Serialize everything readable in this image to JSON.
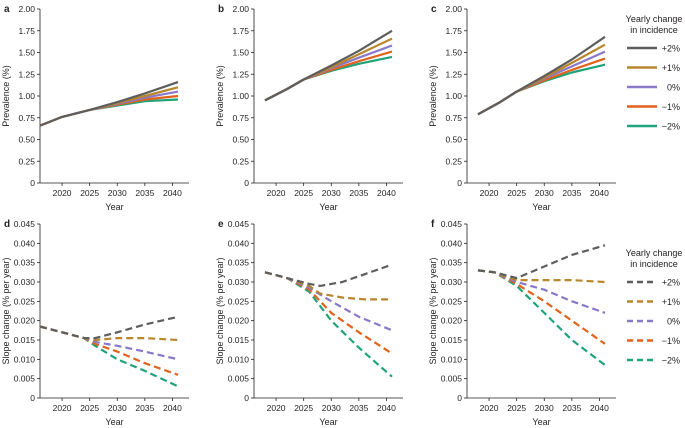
{
  "series_styles": [
    {
      "label": "+2%",
      "color": "#5e5e5e"
    },
    {
      "label": "+1%",
      "color": "#b8862b"
    },
    {
      "label": "0%",
      "color": "#8a78c9"
    },
    {
      "label": "−1%",
      "color": "#e0621b"
    },
    {
      "label": "−2%",
      "color": "#1fa37a"
    }
  ],
  "legend_title": [
    "Yearly change",
    "in incidence"
  ],
  "chart_data": [
    {
      "panel_label": "a",
      "type": "line",
      "line_style": "solid",
      "xlabel": "Year",
      "ylabel": "Prevalence (%)",
      "xlim": [
        2016,
        2043
      ],
      "ylim": [
        0,
        2.0
      ],
      "xticks": [
        2020,
        2025,
        2030,
        2035,
        2040
      ],
      "yticks": [
        "0",
        "0.25",
        "0.50",
        "0.75",
        "1.00",
        "1.25",
        "1.50",
        "1.75",
        "2.00"
      ],
      "ytick_values": [
        0,
        0.25,
        0.5,
        0.75,
        1.0,
        1.25,
        1.5,
        1.75,
        2.0
      ],
      "series": [
        {
          "name": "+2%",
          "points": [
            [
              2016,
              0.66
            ],
            [
              2020,
              0.76
            ],
            [
              2025,
              0.84
            ],
            [
              2030,
              0.93
            ],
            [
              2035,
              1.03
            ],
            [
              2041,
              1.16
            ]
          ]
        },
        {
          "name": "+1%",
          "points": [
            [
              2016,
              0.66
            ],
            [
              2020,
              0.76
            ],
            [
              2025,
              0.84
            ],
            [
              2030,
              0.92
            ],
            [
              2035,
              1.0
            ],
            [
              2041,
              1.1
            ]
          ]
        },
        {
          "name": "0%",
          "points": [
            [
              2016,
              0.66
            ],
            [
              2020,
              0.76
            ],
            [
              2025,
              0.84
            ],
            [
              2030,
              0.91
            ],
            [
              2035,
              0.98
            ],
            [
              2041,
              1.05
            ]
          ]
        },
        {
          "name": "−1%",
          "points": [
            [
              2016,
              0.66
            ],
            [
              2020,
              0.76
            ],
            [
              2025,
              0.84
            ],
            [
              2030,
              0.9
            ],
            [
              2035,
              0.96
            ],
            [
              2041,
              1.0
            ]
          ]
        },
        {
          "name": "−2%",
          "points": [
            [
              2016,
              0.66
            ],
            [
              2020,
              0.76
            ],
            [
              2025,
              0.84
            ],
            [
              2030,
              0.89
            ],
            [
              2035,
              0.94
            ],
            [
              2041,
              0.96
            ]
          ]
        }
      ]
    },
    {
      "panel_label": "b",
      "type": "line",
      "line_style": "solid",
      "xlabel": "Year",
      "ylabel": "Prevalence (%)",
      "xlim": [
        2016,
        2043
      ],
      "ylim": [
        0,
        2.0
      ],
      "xticks": [
        2020,
        2025,
        2030,
        2035,
        2040
      ],
      "yticks": [
        "0",
        "0.25",
        "0.50",
        "0.75",
        "1.00",
        "1.25",
        "1.50",
        "1.75",
        "2.00"
      ],
      "ytick_values": [
        0,
        0.25,
        0.5,
        0.75,
        1.0,
        1.25,
        1.5,
        1.75,
        2.0
      ],
      "series": [
        {
          "name": "+2%",
          "points": [
            [
              2018,
              0.95
            ],
            [
              2022,
              1.08
            ],
            [
              2025,
              1.19
            ],
            [
              2030,
              1.35
            ],
            [
              2035,
              1.52
            ],
            [
              2041,
              1.75
            ]
          ]
        },
        {
          "name": "+1%",
          "points": [
            [
              2018,
              0.95
            ],
            [
              2022,
              1.08
            ],
            [
              2025,
              1.19
            ],
            [
              2030,
              1.33
            ],
            [
              2035,
              1.48
            ],
            [
              2041,
              1.66
            ]
          ]
        },
        {
          "name": "0%",
          "points": [
            [
              2018,
              0.95
            ],
            [
              2022,
              1.08
            ],
            [
              2025,
              1.19
            ],
            [
              2030,
              1.32
            ],
            [
              2035,
              1.44
            ],
            [
              2041,
              1.58
            ]
          ]
        },
        {
          "name": "−1%",
          "points": [
            [
              2018,
              0.95
            ],
            [
              2022,
              1.08
            ],
            [
              2025,
              1.19
            ],
            [
              2030,
              1.3
            ],
            [
              2035,
              1.4
            ],
            [
              2041,
              1.51
            ]
          ]
        },
        {
          "name": "−2%",
          "points": [
            [
              2018,
              0.95
            ],
            [
              2022,
              1.08
            ],
            [
              2025,
              1.19
            ],
            [
              2030,
              1.29
            ],
            [
              2035,
              1.37
            ],
            [
              2041,
              1.45
            ]
          ]
        }
      ]
    },
    {
      "panel_label": "c",
      "type": "line",
      "line_style": "solid",
      "xlabel": "Year",
      "ylabel": "Prevalence (%)",
      "xlim": [
        2016,
        2043
      ],
      "ylim": [
        0,
        2.0
      ],
      "xticks": [
        2020,
        2025,
        2030,
        2035,
        2040
      ],
      "yticks": [
        "0",
        "0.25",
        "0.50",
        "0.75",
        "1.00",
        "1.25",
        "1.50",
        "1.75",
        "2.00"
      ],
      "ytick_values": [
        0,
        0.25,
        0.5,
        0.75,
        1.0,
        1.25,
        1.5,
        1.75,
        2.0
      ],
      "series": [
        {
          "name": "+2%",
          "points": [
            [
              2018,
              0.79
            ],
            [
              2022,
              0.93
            ],
            [
              2025,
              1.05
            ],
            [
              2030,
              1.23
            ],
            [
              2035,
              1.42
            ],
            [
              2041,
              1.68
            ]
          ]
        },
        {
          "name": "+1%",
          "points": [
            [
              2018,
              0.79
            ],
            [
              2022,
              0.93
            ],
            [
              2025,
              1.05
            ],
            [
              2030,
              1.21
            ],
            [
              2035,
              1.38
            ],
            [
              2041,
              1.59
            ]
          ]
        },
        {
          "name": "0%",
          "points": [
            [
              2018,
              0.79
            ],
            [
              2022,
              0.93
            ],
            [
              2025,
              1.05
            ],
            [
              2030,
              1.2
            ],
            [
              2035,
              1.34
            ],
            [
              2041,
              1.51
            ]
          ]
        },
        {
          "name": "−1%",
          "points": [
            [
              2018,
              0.79
            ],
            [
              2022,
              0.93
            ],
            [
              2025,
              1.05
            ],
            [
              2030,
              1.18
            ],
            [
              2035,
              1.3
            ],
            [
              2041,
              1.43
            ]
          ]
        },
        {
          "name": "−2%",
          "points": [
            [
              2018,
              0.79
            ],
            [
              2022,
              0.93
            ],
            [
              2025,
              1.05
            ],
            [
              2030,
              1.17
            ],
            [
              2035,
              1.27
            ],
            [
              2041,
              1.36
            ]
          ]
        }
      ]
    },
    {
      "panel_label": "d",
      "type": "line",
      "line_style": "dashed",
      "xlabel": "Year",
      "ylabel": "Slope change (% per year)",
      "xlim": [
        2016,
        2043
      ],
      "ylim": [
        0,
        0.045
      ],
      "xticks": [
        2020,
        2025,
        2030,
        2035,
        2040
      ],
      "yticks": [
        "0",
        "0.005",
        "0.010",
        "0.015",
        "0.020",
        "0.025",
        "0.030",
        "0.035",
        "0.040",
        "0.045"
      ],
      "ytick_values": [
        0,
        0.005,
        0.01,
        0.015,
        0.02,
        0.025,
        0.03,
        0.035,
        0.04,
        0.045
      ],
      "series": [
        {
          "name": "+2%",
          "points": [
            [
              2016,
              0.0185
            ],
            [
              2020,
              0.017
            ],
            [
              2024,
              0.0155
            ],
            [
              2026,
              0.0155
            ],
            [
              2030,
              0.017
            ],
            [
              2035,
              0.019
            ],
            [
              2041,
              0.021
            ]
          ]
        },
        {
          "name": "+1%",
          "points": [
            [
              2016,
              0.0185
            ],
            [
              2020,
              0.017
            ],
            [
              2024,
              0.0155
            ],
            [
              2026,
              0.015
            ],
            [
              2030,
              0.0155
            ],
            [
              2035,
              0.0155
            ],
            [
              2041,
              0.015
            ]
          ]
        },
        {
          "name": "0%",
          "points": [
            [
              2016,
              0.0185
            ],
            [
              2020,
              0.017
            ],
            [
              2024,
              0.0155
            ],
            [
              2026,
              0.0145
            ],
            [
              2030,
              0.0135
            ],
            [
              2035,
              0.012
            ],
            [
              2041,
              0.01
            ]
          ]
        },
        {
          "name": "−1%",
          "points": [
            [
              2016,
              0.0185
            ],
            [
              2020,
              0.017
            ],
            [
              2024,
              0.0155
            ],
            [
              2026,
              0.014
            ],
            [
              2030,
              0.012
            ],
            [
              2035,
              0.009
            ],
            [
              2041,
              0.006
            ]
          ]
        },
        {
          "name": "−2%",
          "points": [
            [
              2016,
              0.0185
            ],
            [
              2020,
              0.017
            ],
            [
              2024,
              0.0155
            ],
            [
              2026,
              0.0135
            ],
            [
              2030,
              0.01
            ],
            [
              2035,
              0.007
            ],
            [
              2041,
              0.003
            ]
          ]
        }
      ]
    },
    {
      "panel_label": "e",
      "type": "line",
      "line_style": "dashed",
      "xlabel": "Year",
      "ylabel": "Slope change (% per year)",
      "xlim": [
        2016,
        2043
      ],
      "ylim": [
        0,
        0.045
      ],
      "xticks": [
        2020,
        2025,
        2030,
        2035,
        2040
      ],
      "yticks": [
        "0",
        "0.005",
        "0.010",
        "0.015",
        "0.020",
        "0.025",
        "0.030",
        "0.035",
        "0.040",
        "0.045"
      ],
      "ytick_values": [
        0,
        0.005,
        0.01,
        0.015,
        0.02,
        0.025,
        0.03,
        0.035,
        0.04,
        0.045
      ],
      "series": [
        {
          "name": "+2%",
          "points": [
            [
              2018,
              0.0325
            ],
            [
              2022,
              0.031
            ],
            [
              2026,
              0.0295
            ],
            [
              2028,
              0.029
            ],
            [
              2032,
              0.03
            ],
            [
              2036,
              0.032
            ],
            [
              2041,
              0.0345
            ]
          ]
        },
        {
          "name": "+1%",
          "points": [
            [
              2018,
              0.0325
            ],
            [
              2022,
              0.031
            ],
            [
              2026,
              0.029
            ],
            [
              2028,
              0.027
            ],
            [
              2032,
              0.026
            ],
            [
              2036,
              0.0255
            ],
            [
              2041,
              0.0255
            ]
          ]
        },
        {
          "name": "0%",
          "points": [
            [
              2018,
              0.0325
            ],
            [
              2022,
              0.031
            ],
            [
              2026,
              0.0285
            ],
            [
              2030,
              0.025
            ],
            [
              2035,
              0.021
            ],
            [
              2041,
              0.0175
            ]
          ]
        },
        {
          "name": "−1%",
          "points": [
            [
              2018,
              0.0325
            ],
            [
              2022,
              0.031
            ],
            [
              2026,
              0.028
            ],
            [
              2030,
              0.022
            ],
            [
              2035,
              0.017
            ],
            [
              2041,
              0.0115
            ]
          ]
        },
        {
          "name": "−2%",
          "points": [
            [
              2018,
              0.0325
            ],
            [
              2022,
              0.031
            ],
            [
              2026,
              0.0275
            ],
            [
              2030,
              0.02
            ],
            [
              2035,
              0.013
            ],
            [
              2041,
              0.0055
            ]
          ]
        }
      ]
    },
    {
      "panel_label": "f",
      "type": "line",
      "line_style": "dashed",
      "xlabel": "Year",
      "ylabel": "Slope change (% per year)",
      "xlim": [
        2016,
        2043
      ],
      "ylim": [
        0,
        0.045
      ],
      "xticks": [
        2020,
        2025,
        2030,
        2035,
        2040
      ],
      "yticks": [
        "0",
        "0.005",
        "0.010",
        "0.015",
        "0.020",
        "0.025",
        "0.030",
        "0.035",
        "0.040",
        "0.045"
      ],
      "ytick_values": [
        0,
        0.005,
        0.01,
        0.015,
        0.02,
        0.025,
        0.03,
        0.035,
        0.04,
        0.045
      ],
      "series": [
        {
          "name": "+2%",
          "points": [
            [
              2018,
              0.033
            ],
            [
              2021,
              0.0325
            ],
            [
              2025,
              0.031
            ],
            [
              2030,
              0.034
            ],
            [
              2035,
              0.037
            ],
            [
              2041,
              0.0395
            ]
          ]
        },
        {
          "name": "+1%",
          "points": [
            [
              2018,
              0.033
            ],
            [
              2021,
              0.0325
            ],
            [
              2025,
              0.0305
            ],
            [
              2030,
              0.0305
            ],
            [
              2035,
              0.0305
            ],
            [
              2041,
              0.03
            ]
          ]
        },
        {
          "name": "0%",
          "points": [
            [
              2018,
              0.033
            ],
            [
              2021,
              0.0325
            ],
            [
              2025,
              0.03
            ],
            [
              2030,
              0.028
            ],
            [
              2035,
              0.025
            ],
            [
              2041,
              0.022
            ]
          ]
        },
        {
          "name": "−1%",
          "points": [
            [
              2018,
              0.033
            ],
            [
              2021,
              0.0325
            ],
            [
              2025,
              0.0295
            ],
            [
              2030,
              0.025
            ],
            [
              2035,
              0.02
            ],
            [
              2041,
              0.014
            ]
          ]
        },
        {
          "name": "−2%",
          "points": [
            [
              2018,
              0.033
            ],
            [
              2021,
              0.0325
            ],
            [
              2025,
              0.029
            ],
            [
              2030,
              0.022
            ],
            [
              2035,
              0.015
            ],
            [
              2041,
              0.0085
            ]
          ]
        }
      ]
    }
  ]
}
